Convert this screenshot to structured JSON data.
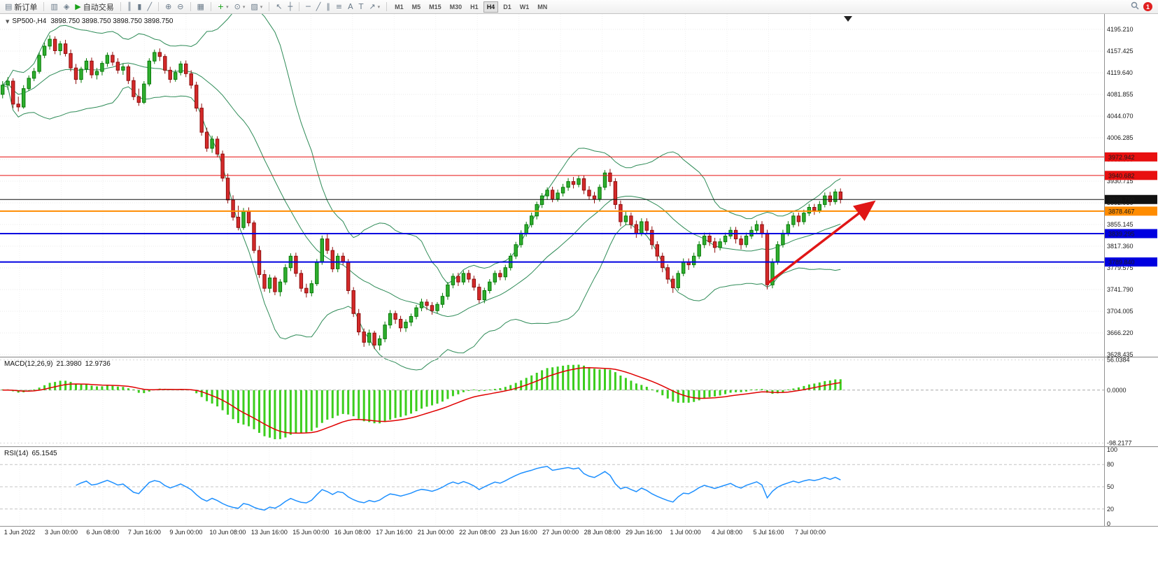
{
  "toolbar": {
    "buttons": [
      {
        "name": "new-order-button",
        "glyph": "▤",
        "label": "新订单",
        "sep_after": true
      },
      {
        "name": "depth-of-market-button",
        "glyph": "▥"
      },
      {
        "name": "ide-editor-button",
        "glyph": "◈"
      },
      {
        "name": "algo-trading-button",
        "glyph": "▶",
        "glyph_color": "#18a018",
        "label": "自动交易",
        "sep_after": true
      },
      {
        "name": "bar-chart-button",
        "glyph": "║"
      },
      {
        "name": "candlestick-chart-button",
        "glyph": "▮"
      },
      {
        "name": "line-chart-button",
        "glyph": "╱",
        "sep_after": true
      },
      {
        "name": "zoom-in-button",
        "glyph": "⊕"
      },
      {
        "name": "zoom-out-button",
        "glyph": "⊖",
        "sep_after": true
      },
      {
        "name": "tile-windows-button",
        "glyph": "▦",
        "sep_after": true
      },
      {
        "name": "add-indicator-button",
        "glyph": "+",
        "glyph_color": "#12a112",
        "caret": true
      },
      {
        "name": "period-button",
        "glyph": "⊙",
        "caret": true
      },
      {
        "name": "template-button",
        "glyph": "▨",
        "caret": true,
        "sep_after": true
      },
      {
        "name": "cursor-button",
        "glyph": "↖"
      },
      {
        "name": "crosshair-button",
        "glyph": "┼",
        "sep_after": true
      },
      {
        "name": "horizontal-line-button",
        "glyph": "─"
      },
      {
        "name": "trendline-button",
        "glyph": "╱"
      },
      {
        "name": "channel-button",
        "glyph": "∥"
      },
      {
        "name": "fibonacci-button",
        "glyph": "≡"
      },
      {
        "name": "text-button",
        "glyph": "A"
      },
      {
        "name": "label-button",
        "glyph": "T"
      },
      {
        "name": "arrows-button",
        "glyph": "↗",
        "caret": true,
        "sep_after": true
      }
    ],
    "timeframes": [
      {
        "label": "M1"
      },
      {
        "label": "M5"
      },
      {
        "label": "M15"
      },
      {
        "label": "M30"
      },
      {
        "label": "H1"
      },
      {
        "label": "H4",
        "active": true
      },
      {
        "label": "D1"
      },
      {
        "label": "W1"
      },
      {
        "label": "MN"
      }
    ],
    "right": {
      "notification": "1"
    }
  },
  "chart_header": {
    "symbol_period": "SP500-,H4",
    "quotes": "3898.750 3898.750 3898.750 3898.750"
  },
  "chart_data": {
    "type": "candlestick",
    "symbol": "SP500-",
    "timeframe": "H4",
    "price_axis": {
      "min": 3624.8,
      "max": 4219.6,
      "ticks": [
        "4195.210",
        "4157.425",
        "4119.640",
        "4081.855",
        "4044.070",
        "4006.285",
        "3968.500",
        "3930.715",
        "3892.930",
        "3855.145",
        "3817.360",
        "3779.575",
        "3741.790",
        "3704.005",
        "3666.220",
        "3628.435"
      ]
    },
    "x_labels": [
      "1 Jun 2022",
      "3 Jun 00:00",
      "6 Jun 08:00",
      "7 Jun 16:00",
      "9 Jun 00:00",
      "10 Jun 08:00",
      "13 Jun 16:00",
      "15 Jun 00:00",
      "16 Jun 08:00",
      "17 Jun 16:00",
      "21 Jun 00:00",
      "22 Jun 08:00",
      "23 Jun 16:00",
      "27 Jun 00:00",
      "28 Jun 08:00",
      "29 Jun 16:00",
      "1 Jul 00:00",
      "4 Jul 08:00",
      "5 Jul 16:00",
      "7 Jul 00:00"
    ],
    "bollinger": {
      "period": 20,
      "deviation": 2,
      "color": "#2E8B57"
    },
    "candle_colors": {
      "up_fill": "#2fae2f",
      "up_stroke": "#067a06",
      "down_fill": "#d42a2a",
      "down_stroke": "#8f0e0e"
    },
    "hlines": [
      {
        "price": 3972.942,
        "label": "3972.942",
        "color": "#e81010",
        "width": 1
      },
      {
        "price": 3940.682,
        "label": "3940.682",
        "color": "#e81010",
        "width": 1
      },
      {
        "price": 3898.75,
        "label": "3898.750",
        "color": "#111111",
        "width": 1
      },
      {
        "price": 3878.467,
        "label": "3878.467",
        "color": "#ff8c00",
        "width": 2
      },
      {
        "price": 3839.295,
        "label": "3839.295",
        "color": "#0000e0",
        "width": 2
      },
      {
        "price": 3789.84,
        "label": "3789.840",
        "color": "#0000e0",
        "width": 2
      }
    ],
    "annotations": {
      "trend_arrow": {
        "from_index": 146,
        "from_price": 3752,
        "to_index": 166,
        "to_price": 3892,
        "color": "#e01616"
      }
    },
    "indicators": [
      {
        "name": "macd",
        "label": "MACD(12,26,9)",
        "value_main": "21.3980",
        "value_signal": "12.9736",
        "fast": 12,
        "slow": 26,
        "signal": 9,
        "axis_ticks": [
          "56.0384",
          "0.0000",
          "-98.2177"
        ],
        "histogram_color": "#3cce1e",
        "signal_color": "#e00000"
      },
      {
        "name": "rsi",
        "label": "RSI(14)",
        "value": "65.1545",
        "period": 14,
        "axis_ticks": [
          "100",
          "80",
          "50",
          "20",
          "0"
        ],
        "levels": [
          80,
          50,
          20
        ],
        "line_color": "#1e90ff"
      }
    ],
    "candles": [
      [
        4082,
        4105,
        4075,
        4098
      ],
      [
        4098,
        4112,
        4090,
        4105
      ],
      [
        4105,
        4110,
        4058,
        4065
      ],
      [
        4065,
        4078,
        4052,
        4060
      ],
      [
        4060,
        4098,
        4057,
        4092
      ],
      [
        4092,
        4115,
        4088,
        4110
      ],
      [
        4110,
        4128,
        4105,
        4122
      ],
      [
        4122,
        4155,
        4118,
        4150
      ],
      [
        4150,
        4172,
        4145,
        4166
      ],
      [
        4166,
        4185,
        4160,
        4178
      ],
      [
        4178,
        4183,
        4152,
        4158
      ],
      [
        4158,
        4175,
        4150,
        4170
      ],
      [
        4170,
        4177,
        4148,
        4153
      ],
      [
        4153,
        4160,
        4122,
        4128
      ],
      [
        4128,
        4135,
        4100,
        4108
      ],
      [
        4108,
        4130,
        4102,
        4126
      ],
      [
        4126,
        4145,
        4120,
        4140
      ],
      [
        4140,
        4146,
        4110,
        4116
      ],
      [
        4116,
        4128,
        4108,
        4122
      ],
      [
        4122,
        4140,
        4115,
        4136
      ],
      [
        4136,
        4155,
        4130,
        4150
      ],
      [
        4150,
        4156,
        4132,
        4138
      ],
      [
        4138,
        4145,
        4118,
        4124
      ],
      [
        4124,
        4136,
        4116,
        4130
      ],
      [
        4130,
        4134,
        4100,
        4106
      ],
      [
        4106,
        4112,
        4072,
        4078
      ],
      [
        4078,
        4092,
        4062,
        4068
      ],
      [
        4068,
        4105,
        4065,
        4100
      ],
      [
        4100,
        4145,
        4096,
        4140
      ],
      [
        4140,
        4160,
        4135,
        4155
      ],
      [
        4155,
        4162,
        4140,
        4148
      ],
      [
        4148,
        4152,
        4118,
        4124
      ],
      [
        4124,
        4130,
        4102,
        4108
      ],
      [
        4108,
        4125,
        4104,
        4120
      ],
      [
        4120,
        4140,
        4115,
        4135
      ],
      [
        4135,
        4141,
        4112,
        4118
      ],
      [
        4118,
        4124,
        4092,
        4098
      ],
      [
        4098,
        4104,
        4052,
        4058
      ],
      [
        4058,
        4066,
        4010,
        4016
      ],
      [
        4016,
        4024,
        3982,
        3988
      ],
      [
        3988,
        4010,
        3980,
        4004
      ],
      [
        4004,
        4009,
        3972,
        3978
      ],
      [
        3978,
        3984,
        3930,
        3936
      ],
      [
        3936,
        3944,
        3892,
        3898
      ],
      [
        3898,
        3906,
        3862,
        3868
      ],
      [
        3868,
        3888,
        3845,
        3850
      ],
      [
        3850,
        3884,
        3846,
        3878
      ],
      [
        3878,
        3885,
        3852,
        3858
      ],
      [
        3858,
        3862,
        3805,
        3810
      ],
      [
        3810,
        3818,
        3762,
        3768
      ],
      [
        3768,
        3776,
        3738,
        3744
      ],
      [
        3744,
        3768,
        3736,
        3762
      ],
      [
        3762,
        3766,
        3732,
        3738
      ],
      [
        3738,
        3760,
        3730,
        3755
      ],
      [
        3755,
        3786,
        3750,
        3780
      ],
      [
        3780,
        3805,
        3774,
        3800
      ],
      [
        3800,
        3806,
        3764,
        3770
      ],
      [
        3770,
        3776,
        3738,
        3744
      ],
      [
        3744,
        3752,
        3728,
        3736
      ],
      [
        3736,
        3758,
        3730,
        3752
      ],
      [
        3752,
        3795,
        3748,
        3790
      ],
      [
        3790,
        3836,
        3785,
        3830
      ],
      [
        3830,
        3838,
        3804,
        3810
      ],
      [
        3810,
        3816,
        3772,
        3778
      ],
      [
        3778,
        3805,
        3772,
        3800
      ],
      [
        3800,
        3806,
        3784,
        3790
      ],
      [
        3790,
        3795,
        3734,
        3740
      ],
      [
        3740,
        3746,
        3694,
        3700
      ],
      [
        3700,
        3708,
        3662,
        3668
      ],
      [
        3668,
        3674,
        3642,
        3650
      ],
      [
        3650,
        3672,
        3644,
        3666
      ],
      [
        3666,
        3670,
        3638,
        3645
      ],
      [
        3645,
        3662,
        3636,
        3656
      ],
      [
        3656,
        3686,
        3650,
        3680
      ],
      [
        3680,
        3706,
        3674,
        3700
      ],
      [
        3700,
        3705,
        3682,
        3690
      ],
      [
        3690,
        3696,
        3668,
        3675
      ],
      [
        3675,
        3690,
        3668,
        3685
      ],
      [
        3685,
        3700,
        3678,
        3695
      ],
      [
        3695,
        3715,
        3690,
        3710
      ],
      [
        3710,
        3726,
        3704,
        3720
      ],
      [
        3720,
        3725,
        3706,
        3714
      ],
      [
        3714,
        3720,
        3698,
        3705
      ],
      [
        3705,
        3720,
        3700,
        3716
      ],
      [
        3716,
        3736,
        3710,
        3730
      ],
      [
        3730,
        3755,
        3724,
        3750
      ],
      [
        3750,
        3770,
        3744,
        3765
      ],
      [
        3765,
        3771,
        3748,
        3755
      ],
      [
        3755,
        3775,
        3750,
        3770
      ],
      [
        3770,
        3776,
        3754,
        3760
      ],
      [
        3760,
        3766,
        3740,
        3746
      ],
      [
        3746,
        3752,
        3718,
        3724
      ],
      [
        3724,
        3745,
        3718,
        3740
      ],
      [
        3740,
        3760,
        3735,
        3755
      ],
      [
        3755,
        3775,
        3750,
        3770
      ],
      [
        3770,
        3776,
        3758,
        3764
      ],
      [
        3764,
        3785,
        3758,
        3780
      ],
      [
        3780,
        3805,
        3775,
        3800
      ],
      [
        3800,
        3825,
        3795,
        3820
      ],
      [
        3820,
        3845,
        3815,
        3840
      ],
      [
        3840,
        3860,
        3834,
        3855
      ],
      [
        3855,
        3876,
        3850,
        3870
      ],
      [
        3870,
        3895,
        3864,
        3890
      ],
      [
        3890,
        3910,
        3884,
        3905
      ],
      [
        3905,
        3920,
        3898,
        3915
      ],
      [
        3915,
        3921,
        3894,
        3900
      ],
      [
        3900,
        3916,
        3895,
        3910
      ],
      [
        3910,
        3926,
        3904,
        3920
      ],
      [
        3920,
        3936,
        3914,
        3930
      ],
      [
        3930,
        3938,
        3918,
        3925
      ],
      [
        3925,
        3940,
        3920,
        3935
      ],
      [
        3935,
        3941,
        3908,
        3915
      ],
      [
        3915,
        3922,
        3898,
        3905
      ],
      [
        3905,
        3912,
        3892,
        3900
      ],
      [
        3900,
        3925,
        3895,
        3920
      ],
      [
        3920,
        3950,
        3915,
        3945
      ],
      [
        3945,
        3952,
        3922,
        3930
      ],
      [
        3930,
        3936,
        3882,
        3890
      ],
      [
        3890,
        3897,
        3852,
        3860
      ],
      [
        3860,
        3878,
        3854,
        3870
      ],
      [
        3870,
        3876,
        3848,
        3855
      ],
      [
        3855,
        3862,
        3832,
        3840
      ],
      [
        3840,
        3866,
        3835,
        3860
      ],
      [
        3860,
        3866,
        3838,
        3845
      ],
      [
        3845,
        3852,
        3812,
        3820
      ],
      [
        3820,
        3826,
        3792,
        3800
      ],
      [
        3800,
        3806,
        3772,
        3780
      ],
      [
        3780,
        3786,
        3752,
        3760
      ],
      [
        3760,
        3766,
        3736,
        3745
      ],
      [
        3745,
        3775,
        3740,
        3770
      ],
      [
        3770,
        3796,
        3765,
        3790
      ],
      [
        3790,
        3796,
        3776,
        3785
      ],
      [
        3785,
        3806,
        3780,
        3800
      ],
      [
        3800,
        3826,
        3795,
        3820
      ],
      [
        3820,
        3841,
        3814,
        3835
      ],
      [
        3835,
        3841,
        3818,
        3825
      ],
      [
        3825,
        3832,
        3806,
        3815
      ],
      [
        3815,
        3831,
        3810,
        3825
      ],
      [
        3825,
        3841,
        3820,
        3835
      ],
      [
        3835,
        3851,
        3830,
        3845
      ],
      [
        3845,
        3851,
        3822,
        3830
      ],
      [
        3830,
        3836,
        3812,
        3820
      ],
      [
        3820,
        3841,
        3815,
        3835
      ],
      [
        3835,
        3852,
        3830,
        3845
      ],
      [
        3845,
        3862,
        3840,
        3855
      ],
      [
        3855,
        3861,
        3832,
        3840
      ],
      [
        3840,
        3846,
        3742,
        3750
      ],
      [
        3750,
        3796,
        3744,
        3790
      ],
      [
        3790,
        3826,
        3785,
        3820
      ],
      [
        3820,
        3846,
        3815,
        3840
      ],
      [
        3840,
        3861,
        3835,
        3855
      ],
      [
        3855,
        3876,
        3850,
        3870
      ],
      [
        3870,
        3876,
        3852,
        3860
      ],
      [
        3860,
        3881,
        3855,
        3875
      ],
      [
        3875,
        3891,
        3870,
        3885
      ],
      [
        3885,
        3891,
        3872,
        3880
      ],
      [
        3880,
        3896,
        3875,
        3890
      ],
      [
        3890,
        3911,
        3885,
        3905
      ],
      [
        3905,
        3912,
        3888,
        3895
      ],
      [
        3895,
        3917,
        3890,
        3912
      ],
      [
        3912,
        3918,
        3892,
        3898.75
      ]
    ]
  }
}
